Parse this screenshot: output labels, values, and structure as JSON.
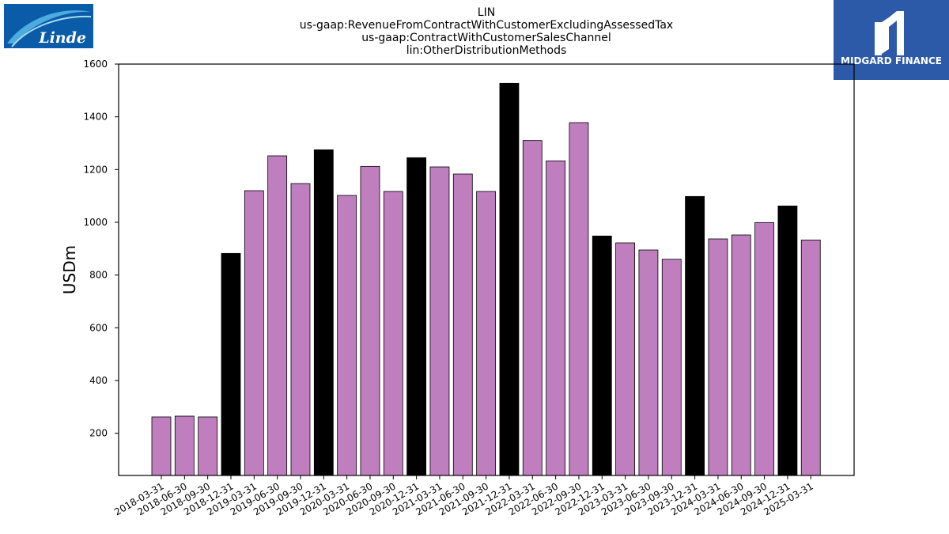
{
  "logos": {
    "left": {
      "text": "Linde",
      "bg": "#0a5ca8"
    },
    "right": {
      "text": "MIDGARD FINANCE",
      "bg": "#2d5aa8"
    }
  },
  "chart_data": {
    "type": "bar",
    "title": [
      "LIN",
      "us-gaap:RevenueFromContractWithCustomerExcludingAssessedTax",
      "us-gaap:ContractWithCustomerSalesChannel",
      "lin:OtherDistributionMethods"
    ],
    "xlabel": "",
    "ylabel": "USDm",
    "ylim": [
      40,
      1600
    ],
    "yticks": [
      200,
      400,
      600,
      800,
      1000,
      1200,
      1400,
      1600
    ],
    "grid": false,
    "colors": {
      "quarter": "#bf7fbf",
      "year_end": "#000000",
      "edge": "#000000"
    },
    "categories": [
      "2018-03-31",
      "2018-06-30",
      "2018-09-30",
      "2018-12-31",
      "2019-03-31",
      "2019-06-30",
      "2019-09-30",
      "2019-12-31",
      "2020-03-31",
      "2020-06-30",
      "2020-09-30",
      "2020-12-31",
      "2021-03-31",
      "2021-06-30",
      "2021-09-30",
      "2021-12-31",
      "2022-03-31",
      "2022-06-30",
      "2022-09-30",
      "2022-12-31",
      "2023-03-31",
      "2023-06-30",
      "2023-09-30",
      "2023-12-31",
      "2024-03-31",
      "2024-06-30",
      "2024-09-30",
      "2024-12-31",
      "2025-03-31"
    ],
    "values": [
      262,
      265,
      262,
      882,
      1120,
      1252,
      1147,
      1275,
      1102,
      1212,
      1117,
      1245,
      1210,
      1183,
      1117,
      1527,
      1310,
      1233,
      1378,
      948,
      922,
      895,
      860,
      1098,
      937,
      952,
      999,
      1062,
      933
    ],
    "bar_color_keys": [
      "quarter",
      "quarter",
      "quarter",
      "year_end",
      "quarter",
      "quarter",
      "quarter",
      "year_end",
      "quarter",
      "quarter",
      "quarter",
      "year_end",
      "quarter",
      "quarter",
      "quarter",
      "year_end",
      "quarter",
      "quarter",
      "quarter",
      "year_end",
      "quarter",
      "quarter",
      "quarter",
      "year_end",
      "quarter",
      "quarter",
      "quarter",
      "year_end",
      "quarter"
    ]
  }
}
